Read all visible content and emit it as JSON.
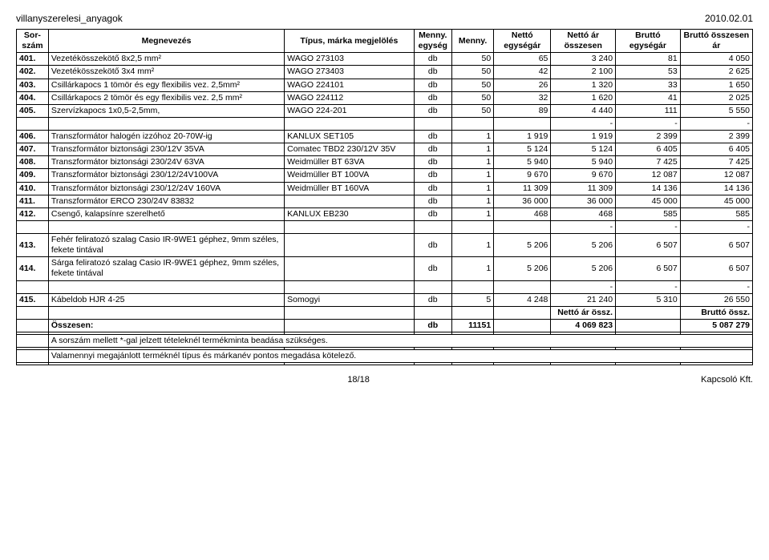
{
  "header": {
    "left": "villanyszerelesi_anyagok",
    "right": "2010.02.01"
  },
  "columns": [
    "Sor-\nszám",
    "Megnevezés",
    "Típus, márka megjelölés",
    "Menny.\negység",
    "Menny.",
    "Nettó\negységár",
    "Nettó ár\nösszesen",
    "Bruttó\negységár",
    "Bruttó\nösszesen ár"
  ],
  "rows": [
    {
      "sor": "401.",
      "megn": "Vezetékösszekötő 8x2,5 mm²",
      "tip": "WAGO 273103",
      "me": "db",
      "men": "50",
      "ne": "65",
      "neo": "3 240",
      "be": "81",
      "bo": "4 050"
    },
    {
      "sor": "402.",
      "megn": "Vezetékösszekötő 3x4 mm²",
      "tip": "WAGO 273403",
      "me": "db",
      "men": "50",
      "ne": "42",
      "neo": "2 100",
      "be": "53",
      "bo": "2 625"
    },
    {
      "sor": "403.",
      "megn": "Csillárkapocs 1 tömör és egy flexibilis vez. 2,5mm²",
      "tip": "WAGO 224101",
      "me": "db",
      "men": "50",
      "ne": "26",
      "neo": "1 320",
      "be": "33",
      "bo": "1 650"
    },
    {
      "sor": "404.",
      "megn": "Csillárkapocs 2 tömör és egy flexibilis vez. 2,5 mm²",
      "tip": "WAGO 224112",
      "me": "db",
      "men": "50",
      "ne": "32",
      "neo": "1 620",
      "be": "41",
      "bo": "2 025"
    },
    {
      "sor": "405.",
      "megn": "Szervízkapocs 1x0,5-2,5mm,",
      "tip": "WAGO 224-201",
      "me": "db",
      "men": "50",
      "ne": "89",
      "neo": "4 440",
      "be": "111",
      "bo": "5 550"
    },
    {
      "sor": "",
      "megn": "",
      "tip": "",
      "me": "",
      "men": "",
      "ne": "",
      "neo": "-",
      "be": "-",
      "bo": "-"
    },
    {
      "sor": "406.",
      "megn": "Transzformátor halogén izzóhoz 20-70W-ig",
      "tip": "KANLUX SET105",
      "me": "db",
      "men": "1",
      "ne": "1 919",
      "neo": "1 919",
      "be": "2 399",
      "bo": "2 399"
    },
    {
      "sor": "407.",
      "megn": "Transzformátor biztonsági 230/12V 35VA",
      "tip": "Comatec TBD2 230/12V 35V",
      "me": "db",
      "men": "1",
      "ne": "5 124",
      "neo": "5 124",
      "be": "6 405",
      "bo": "6 405"
    },
    {
      "sor": "408.",
      "megn": "Transzformátor biztonsági 230/24V 63VA",
      "tip": "Weidmüller BT 63VA",
      "me": "db",
      "men": "1",
      "ne": "5 940",
      "neo": "5 940",
      "be": "7 425",
      "bo": "7 425"
    },
    {
      "sor": "409.",
      "megn": "Transzformátor biztonsági 230/12/24V100VA",
      "tip": "Weidmüller BT 100VA",
      "me": "db",
      "men": "1",
      "ne": "9 670",
      "neo": "9 670",
      "be": "12 087",
      "bo": "12 087"
    },
    {
      "sor": "410.",
      "megn": "Transzformátor biztonsági 230/12/24V 160VA",
      "tip": "Weidmüller BT 160VA",
      "me": "db",
      "men": "1",
      "ne": "11 309",
      "neo": "11 309",
      "be": "14 136",
      "bo": "14 136"
    },
    {
      "sor": "411.",
      "megn": "Transzformátor ERCO 230/24V 83832",
      "tip": "",
      "me": "db",
      "men": "1",
      "ne": "36 000",
      "neo": "36 000",
      "be": "45 000",
      "bo": "45 000"
    },
    {
      "sor": "412.",
      "megn": "Csengő, kalapsínre szerelhető",
      "tip": "KANLUX EB230",
      "me": "db",
      "men": "1",
      "ne": "468",
      "neo": "468",
      "be": "585",
      "bo": "585"
    },
    {
      "sor": "",
      "megn": "",
      "tip": "",
      "me": "",
      "men": "",
      "ne": "",
      "neo": "-",
      "be": "-",
      "bo": "-"
    },
    {
      "sor": "413.",
      "megn": "Fehér feliratozó szalag Casio IR-9WE1 géphez, 9mm széles, fekete tintával",
      "tip": "",
      "me": "db",
      "men": "1",
      "ne": "5 206",
      "neo": "5 206",
      "be": "6 507",
      "bo": "6 507"
    },
    {
      "sor": "414.",
      "megn": "Sárga feliratozó szalag Casio IR-9WE1 géphez, 9mm széles, fekete tintával",
      "tip": "",
      "me": "db",
      "men": "1",
      "ne": "5 206",
      "neo": "5 206",
      "be": "6 507",
      "bo": "6 507"
    },
    {
      "sor": "",
      "megn": "",
      "tip": "",
      "me": "",
      "men": "",
      "ne": "",
      "neo": "-",
      "be": "-",
      "bo": "-"
    },
    {
      "sor": "415.",
      "megn": "Kábeldob HJR 4-25",
      "tip": "Somogyi",
      "me": "db",
      "men": "5",
      "ne": "4 248",
      "neo": "21 240",
      "be": "5 310",
      "bo": "26 550"
    }
  ],
  "totals_labels": {
    "neo": "Nettó ár össz.",
    "bo": "Bruttó össz."
  },
  "totals": {
    "label": "Összesen:",
    "me": "db",
    "men": "11151",
    "neo": "4 069 823",
    "bo": "5 087 279"
  },
  "notes": [
    "A sorszám mellett *-gal jelzett tételeknél termékminta beadása szükséges.",
    "Valamennyi megajánlott terméknél típus és márkanév pontos megadása kötelező."
  ],
  "footer": {
    "center": "18/18",
    "right": "Kapcsoló Kft."
  }
}
